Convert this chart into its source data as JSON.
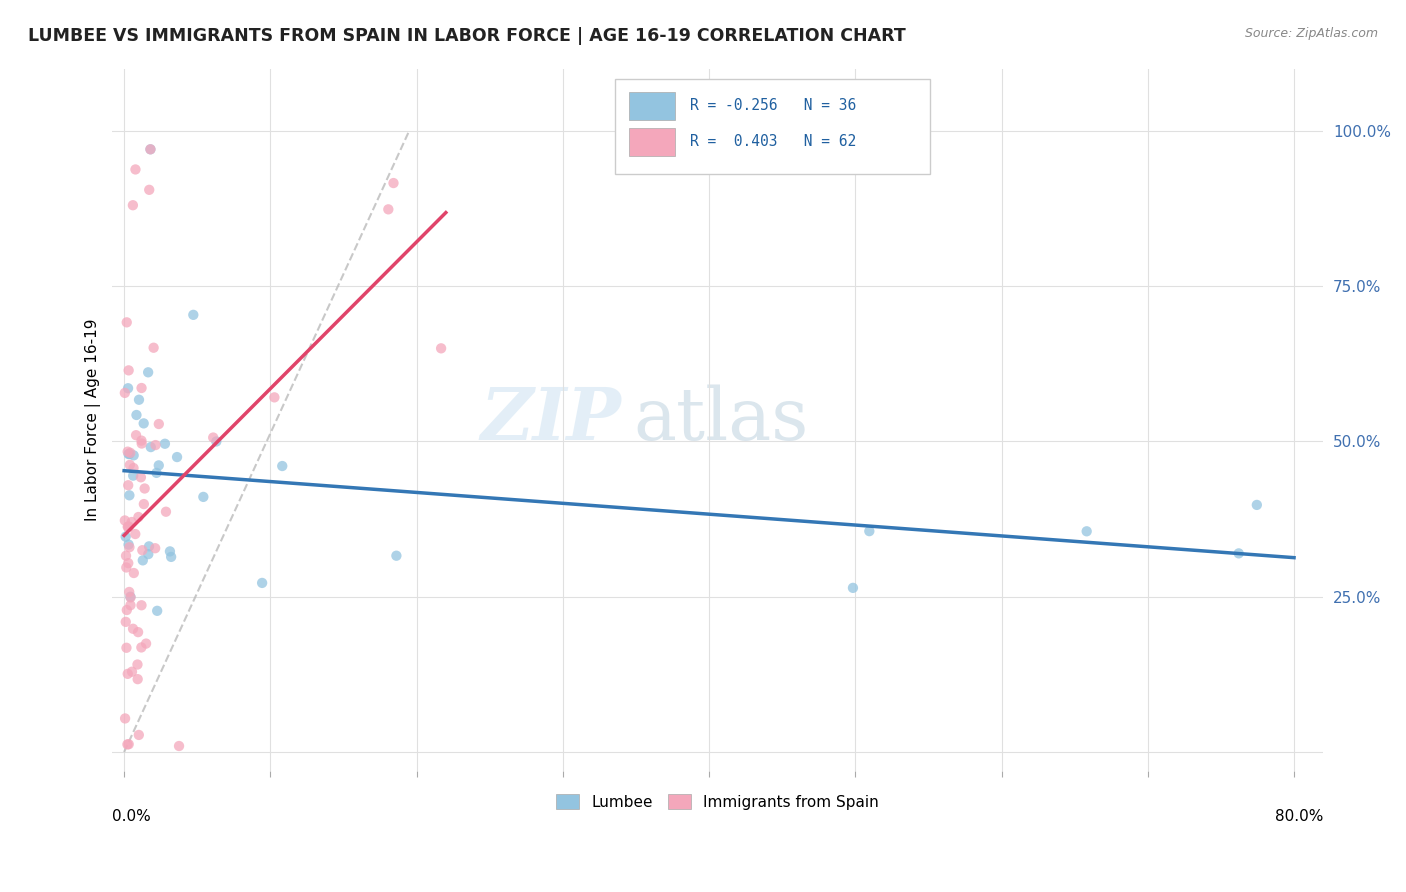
{
  "title": "LUMBEE VS IMMIGRANTS FROM SPAIN IN LABOR FORCE | AGE 16-19 CORRELATION CHART",
  "source": "Source: ZipAtlas.com",
  "ylabel": "In Labor Force | Age 16-19",
  "legend_label1": "Lumbee",
  "legend_label2": "Immigrants from Spain",
  "R1": "-0.256",
  "N1": "36",
  "R2": "0.403",
  "N2": "62",
  "color_blue": "#93c4e0",
  "color_pink": "#f4a7bb",
  "color_blue_line": "#3477b5",
  "color_pink_line": "#e0446a",
  "color_diag": "#bbbbbb",
  "watermark_zip": "ZIP",
  "watermark_atlas": "atlas",
  "xtick_left_label": "0.0%",
  "xtick_right_label": "80.0%",
  "ytick_vals": [
    0.0,
    0.25,
    0.5,
    0.75,
    1.0
  ],
  "yticklabels": [
    "",
    "25.0%",
    "50.0%",
    "75.0%",
    "100.0%"
  ]
}
